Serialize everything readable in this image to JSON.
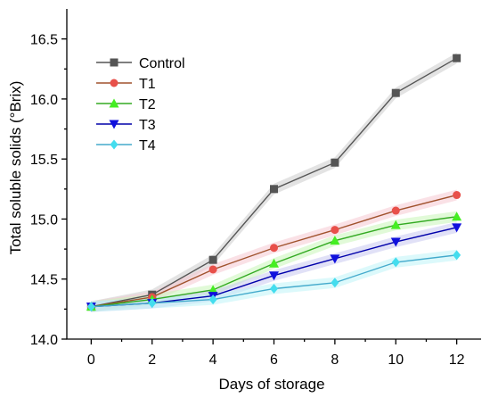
{
  "chart_data": {
    "type": "line",
    "xlabel": "Days of storage",
    "ylabel": "Total soluble solids (°Brix)",
    "xlim": [
      -0.8,
      12.8
    ],
    "ylim": [
      14.0,
      16.75
    ],
    "xticks": [
      "0",
      "2",
      "4",
      "6",
      "8",
      "10",
      "12"
    ],
    "yticks": [
      "14.0",
      "14.5",
      "15.0",
      "15.5",
      "16.0",
      "16.5"
    ],
    "x": [
      0,
      2,
      4,
      6,
      8,
      10,
      12
    ],
    "grid": false,
    "legend_position": "top-left",
    "series": [
      {
        "name": "Control",
        "marker": "square",
        "line_color": "#555555",
        "marker_color": "#555555",
        "band_color": "#cccccc",
        "values": [
          14.27,
          14.37,
          14.66,
          15.25,
          15.47,
          16.05,
          16.34
        ]
      },
      {
        "name": "T1",
        "marker": "circle",
        "line_color": "#a0522d",
        "marker_color": "#e8504a",
        "band_color": "#f6c9d2",
        "values": [
          14.27,
          14.35,
          14.58,
          14.76,
          14.91,
          15.07,
          15.2
        ]
      },
      {
        "name": "T2",
        "marker": "triangle-up",
        "line_color": "#33aa22",
        "marker_color": "#44ee22",
        "band_color": "#c8f5b8",
        "values": [
          14.27,
          14.33,
          14.41,
          14.63,
          14.82,
          14.95,
          15.02
        ]
      },
      {
        "name": "T3",
        "marker": "triangle-down",
        "line_color": "#0000aa",
        "marker_color": "#1010dd",
        "band_color": "#c8c8f0",
        "values": [
          14.27,
          14.3,
          14.36,
          14.53,
          14.67,
          14.81,
          14.93
        ]
      },
      {
        "name": "T4",
        "marker": "diamond",
        "line_color": "#44aacc",
        "marker_color": "#44ddee",
        "band_color": "#c0f4f8",
        "values": [
          14.27,
          14.3,
          14.33,
          14.42,
          14.47,
          14.64,
          14.7
        ]
      }
    ]
  }
}
